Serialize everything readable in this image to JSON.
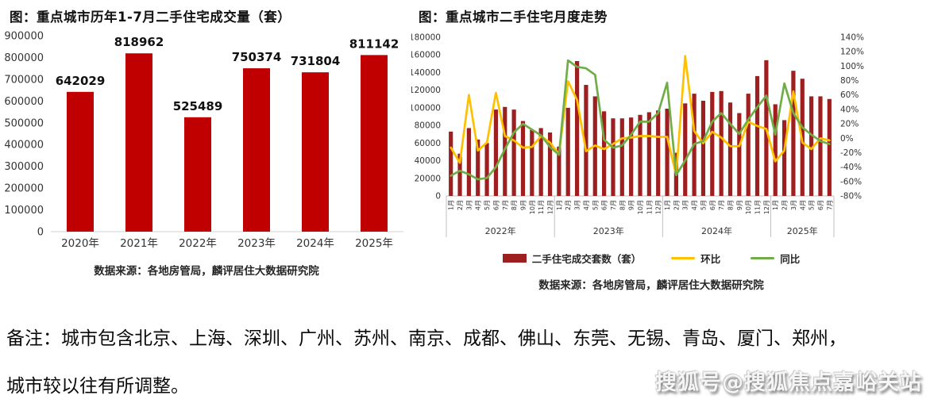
{
  "note": {
    "line1": "备注：城市包含北京、上海、深圳、广州、苏州、南京、成都、佛山、东莞、无锡、青岛、厦门、郑州，",
    "line2": "城市较以往有所调整。"
  },
  "watermark": {
    "text": "搜狐号@搜狐焦点嘉峪关站"
  },
  "chart_data": [
    {
      "type": "bar",
      "title": "图：重点城市历年1-7月二手住宅成交量（套）",
      "categories": [
        "2020年",
        "2021年",
        "2022年",
        "2023年",
        "2024年",
        "2025年"
      ],
      "values": [
        642029,
        818962,
        525489,
        750374,
        731804,
        811142
      ],
      "data_labels": [
        642029,
        818962,
        525489,
        750374,
        731804,
        811142
      ],
      "ylim": [
        0,
        900000
      ],
      "ytick_step": 100000,
      "bar_color": "#c00000",
      "grid": false,
      "source": "数据来源：各地房管局，麟评居住大数据研究院"
    },
    {
      "type": "bar+line",
      "title": "图：重点城市二手住宅月度走势",
      "year_groups": [
        {
          "label": "2022年",
          "months": [
            "1月",
            "2月",
            "3月",
            "4月",
            "5月",
            "6月",
            "7月",
            "8月",
            "9月",
            "10月",
            "11月",
            "12月"
          ]
        },
        {
          "label": "2023年",
          "months": [
            "1月",
            "2月",
            "3月",
            "4月",
            "5月",
            "6月",
            "7月",
            "8月",
            "9月",
            "10月",
            "11月",
            "12月"
          ]
        },
        {
          "label": "2024年",
          "months": [
            "1月",
            "2月",
            "3月",
            "4月",
            "5月",
            "6月",
            "7月",
            "8月",
            "9月",
            "10月",
            "11月",
            "12月"
          ]
        },
        {
          "label": "2025年",
          "months": [
            "1月",
            "2月",
            "3月",
            "4月",
            "5月",
            "6月",
            "7月"
          ]
        }
      ],
      "left_axis": {
        "min": 0,
        "max": 180000,
        "step": 20000
      },
      "right_axis": {
        "min": -80,
        "max": 140,
        "step": 20,
        "suffix": "%"
      },
      "grid": false,
      "legend_position": "bottom",
      "series": [
        {
          "name": "二手住宅成交套数（套）",
          "type": "bar",
          "axis": "left",
          "color": "#9e1f1f",
          "values": [
            73000,
            48000,
            77000,
            64000,
            60000,
            98000,
            101000,
            98000,
            85000,
            75000,
            77000,
            72000,
            56000,
            100000,
            153000,
            126000,
            113000,
            96000,
            88000,
            88000,
            89000,
            92000,
            95000,
            97000,
            99000,
            49000,
            105000,
            116000,
            108000,
            118000,
            119000,
            106000,
            94000,
            116000,
            136000,
            154000,
            104000,
            86000,
            142000,
            133000,
            113000,
            113000,
            110000
          ]
        },
        {
          "name": "环比",
          "type": "line",
          "axis": "right",
          "color": "#ffc000",
          "values": [
            -13,
            -34,
            60,
            -17,
            -6,
            63,
            3,
            -3,
            -13,
            -12,
            3,
            -6,
            -22,
            79,
            53,
            -18,
            -10,
            -15,
            -8,
            0,
            1,
            3,
            3,
            2,
            2,
            -51,
            114,
            10,
            -7,
            9,
            1,
            -11,
            -11,
            23,
            17,
            13,
            -32,
            -17,
            65,
            -6,
            -15,
            0,
            -3
          ]
        },
        {
          "name": "同比",
          "type": "line",
          "axis": "right",
          "color": "#70ad47",
          "values": [
            -52,
            -45,
            -50,
            -57,
            -55,
            -40,
            -15,
            8,
            20,
            12,
            4,
            -12,
            -23,
            108,
            99,
            97,
            88,
            -2,
            -13,
            -10,
            5,
            23,
            23,
            35,
            77,
            -51,
            -31,
            -8,
            -4,
            23,
            35,
            20,
            6,
            26,
            43,
            59,
            5,
            76,
            35,
            15,
            5,
            -4,
            -8
          ]
        }
      ],
      "source": "数据来源：各地房管局，麟评居住大数据研究院"
    }
  ]
}
